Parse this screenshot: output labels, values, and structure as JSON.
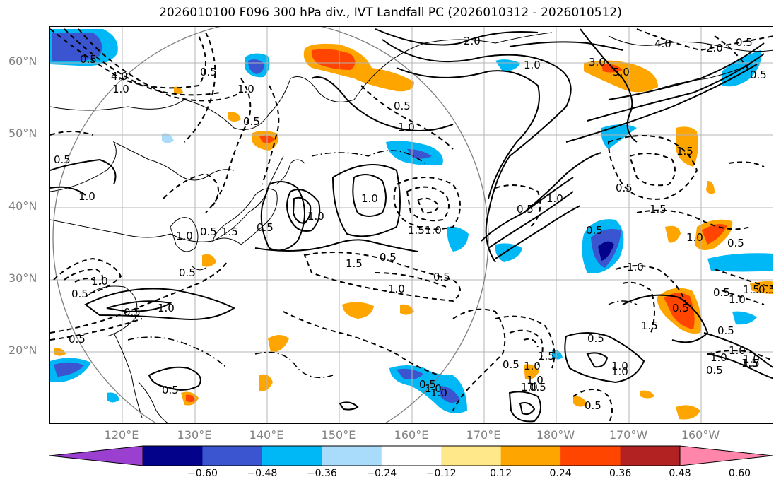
{
  "title": "2026010100 F096 300 hPa div., IVT Landfall PC (2026010312 - 2026010512)",
  "lat_labels": [
    "60°N",
    "50°N",
    "40°N",
    "30°N",
    "20°N"
  ],
  "lon_labels": [
    "120°E",
    "130°E",
    "140°E",
    "150°E",
    "160°E",
    "170°E",
    "180°W",
    "170°W",
    "160°W"
  ],
  "colorbar": {
    "ticks": [
      "−0.60",
      "−0.48",
      "−0.36",
      "−0.24",
      "−0.12",
      "0.12",
      "0.24",
      "0.36",
      "0.48",
      "0.60"
    ],
    "colors": [
      "#9a3fd0",
      "#02028a",
      "#3a55cf",
      "#00b8f6",
      "#a8dcfa",
      "#ffffff",
      "#ffe88a",
      "#ffa500",
      "#ff4500",
      "#b22222",
      "#ff85aa"
    ]
  },
  "contour_labels": [
    "2.0",
    "1.0",
    "4.0",
    "3.0",
    "5.0",
    "2.0",
    "0.5",
    "4.0",
    "0.5",
    "1.0",
    "0.5",
    "0.5",
    "1.0",
    "0.5",
    "1.0",
    "0.5",
    "1.0",
    "1.5",
    "0.5",
    "1.0",
    "1.0",
    "0.5",
    "1.5",
    "1.0",
    "0.5",
    "1.5",
    "1.0",
    "0.5",
    "1.5",
    "0.5",
    "1.0",
    "1.0",
    "0.5",
    "0.5",
    "1.5",
    "0.5",
    "1.0",
    "0.5",
    "1.0",
    "1.0",
    "0.5",
    "0.5",
    "1.5",
    "1.0",
    "0.5",
    "0.5",
    "0.5",
    "1.0",
    "1.5",
    "0.5",
    "0.5",
    "1.0",
    "0.5",
    "1.0",
    "1.0",
    "0.5",
    "1.0",
    "1.5",
    "1.0",
    "0.5",
    "1.5",
    "1.0",
    "1.0",
    "1.5",
    "0.5",
    "1.0",
    "0.5",
    "1.5",
    "0.5",
    "1.0",
    "0.5",
    "1.0",
    "0.5"
  ]
}
